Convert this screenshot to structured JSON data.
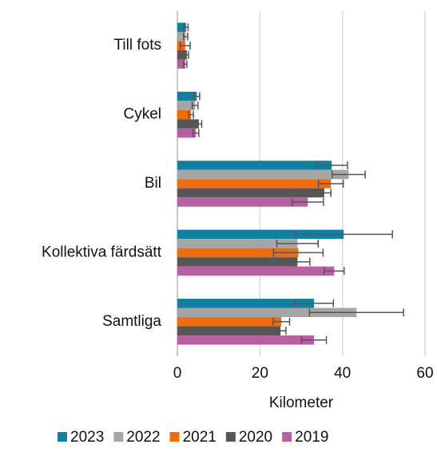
{
  "chart_data": {
    "type": "bar",
    "orientation": "horizontal",
    "categories": [
      "Till fots",
      "Cykel",
      "Bil",
      "Kollektiva färdsätt",
      "Samtliga"
    ],
    "series": [
      {
        "name": "2023",
        "color": "#1380a1",
        "values": [
          2.1,
          4.7,
          37.4,
          40.3,
          33.1
        ],
        "errors": [
          0.5,
          0.7,
          3.8,
          11.8,
          4.7
        ]
      },
      {
        "name": "2022",
        "color": "#a5a5a5",
        "values": [
          2.0,
          4.3,
          41.5,
          29.1,
          43.4
        ],
        "errors": [
          0.5,
          0.7,
          4.0,
          5.0,
          11.4
        ]
      },
      {
        "name": "2021",
        "color": "#ed6d0e",
        "values": [
          1.9,
          3.3,
          37.2,
          29.3,
          25.2
        ],
        "errors": [
          1.2,
          0.6,
          3.0,
          6.0,
          2.0
        ]
      },
      {
        "name": "2020",
        "color": "#565656",
        "values": [
          2.3,
          5.2,
          35.6,
          29.1,
          25.0
        ],
        "errors": [
          0.4,
          0.7,
          1.6,
          3.0,
          1.3
        ]
      },
      {
        "name": "2019",
        "color": "#b660a2",
        "values": [
          1.9,
          4.5,
          31.6,
          38.0,
          33.1
        ],
        "errors": [
          0.4,
          0.7,
          3.8,
          2.4,
          3.0
        ]
      }
    ],
    "xlabel": "Kilometer",
    "xlim": [
      0,
      60
    ],
    "xticks": [
      0,
      20,
      40,
      60
    ],
    "grid": true,
    "legend": "bottom"
  }
}
